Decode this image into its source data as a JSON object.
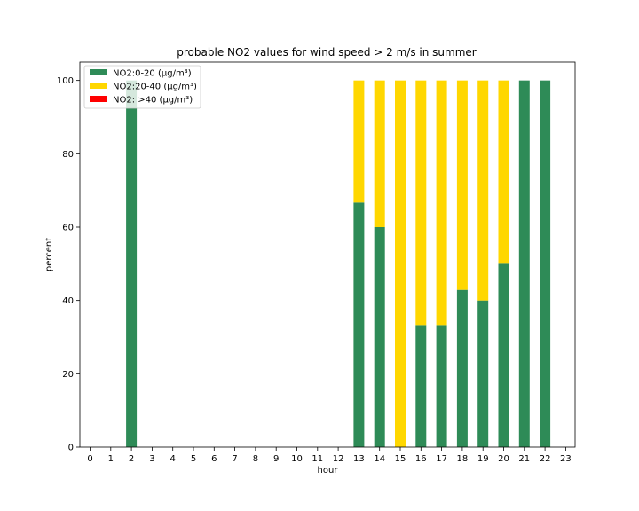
{
  "chart_data": {
    "type": "bar",
    "stacked": true,
    "title": "probable NO2 values for wind speed > 2 m/s in summer",
    "xlabel": "hour",
    "ylabel": "percent",
    "categories": [
      "0",
      "1",
      "2",
      "3",
      "4",
      "5",
      "6",
      "7",
      "8",
      "9",
      "10",
      "11",
      "12",
      "13",
      "14",
      "15",
      "16",
      "17",
      "18",
      "19",
      "20",
      "21",
      "22",
      "23"
    ],
    "yticks": [
      0,
      20,
      40,
      60,
      80,
      100
    ],
    "ylim": [
      0,
      105
    ],
    "grid": false,
    "legend_position": "top-left",
    "series": [
      {
        "name": "NO2:0-20 (µg/m³)",
        "color": "#2e8b57",
        "values": [
          0,
          0,
          100,
          0,
          0,
          0,
          0,
          0,
          0,
          0,
          0,
          0,
          0,
          66.7,
          60,
          0,
          33.3,
          33.3,
          42.9,
          40,
          50,
          100,
          100,
          0
        ]
      },
      {
        "name": "NO2:20-40 (µg/m³)",
        "color": "#ffd700",
        "values": [
          0,
          0,
          0,
          0,
          0,
          0,
          0,
          0,
          0,
          0,
          0,
          0,
          0,
          33.3,
          40,
          100,
          66.7,
          66.7,
          57.1,
          60,
          50,
          0,
          0,
          0
        ]
      },
      {
        "name": "NO2: >40 (µg/m³)",
        "color": "#ff0000",
        "values": [
          0,
          0,
          0,
          0,
          0,
          0,
          0,
          0,
          0,
          0,
          0,
          0,
          0,
          0,
          0,
          0,
          0,
          0,
          0,
          0,
          0,
          0,
          0,
          0
        ]
      }
    ]
  }
}
